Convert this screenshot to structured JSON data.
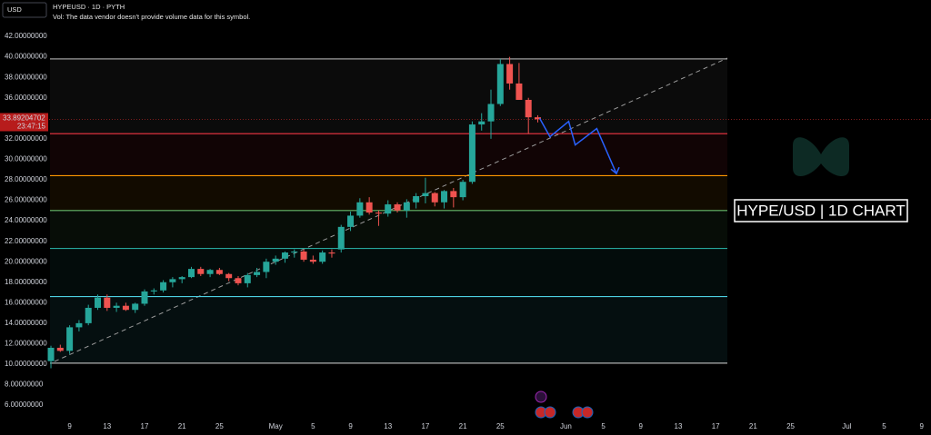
{
  "chart_data": {
    "type": "candlestick",
    "currency": "USD",
    "title": "HYPEUSD · 1D · PYTH",
    "subtitle": "Vol: The data vendor doesn't provide volume data for this symbol.",
    "annotation": "HYPE/USD | 1D CHART",
    "last_price": 33.89204702,
    "countdown": "23:47:15",
    "up_color": "#26a69a",
    "down_color": "#ef5350",
    "x": [
      0,
      1,
      2,
      3,
      4,
      5,
      6,
      7,
      8,
      9,
      10,
      11,
      12,
      13,
      14,
      15,
      16,
      17,
      18,
      19,
      20,
      21,
      22,
      23,
      24,
      25,
      26,
      27,
      28,
      29,
      30,
      31,
      32,
      33,
      34,
      35,
      36,
      37,
      38,
      39,
      40,
      41,
      42,
      43,
      44,
      45,
      46,
      47,
      48,
      49,
      50,
      51,
      52
    ],
    "open": [
      10.3,
      11.6,
      11.3,
      13.6,
      14.0,
      15.5,
      16.5,
      15.5,
      15.7,
      15.3,
      15.9,
      17.1,
      17.2,
      18.0,
      18.3,
      18.5,
      19.3,
      18.8,
      19.2,
      18.8,
      18.4,
      17.9,
      18.7,
      19.0,
      20.0,
      20.3,
      20.9,
      21.0,
      20.2,
      20.0,
      20.9,
      21.2,
      23.4,
      24.5,
      25.8,
      24.8,
      24.7,
      25.6,
      25.0,
      25.8,
      26.4,
      26.7,
      25.8,
      26.9,
      26.3,
      27.8,
      33.4,
      33.7,
      35.4,
      39.3,
      37.4,
      35.8,
      34.1
    ],
    "high": [
      11.8,
      11.9,
      13.8,
      14.3,
      15.8,
      16.8,
      16.8,
      16.0,
      16.0,
      16.0,
      17.3,
      17.4,
      18.2,
      18.5,
      18.6,
      19.5,
      19.5,
      19.3,
      19.4,
      18.9,
      18.6,
      18.9,
      19.4,
      20.3,
      20.6,
      21.0,
      21.2,
      21.2,
      20.6,
      21.1,
      21.2,
      23.6,
      24.9,
      26.2,
      26.3,
      25.0,
      26.0,
      25.8,
      26.1,
      26.7,
      28.2,
      26.8,
      27.0,
      27.2,
      28.0,
      33.7,
      34.5,
      36.8,
      39.8,
      40.0,
      39.4,
      36.0,
      34.3
    ],
    "low": [
      9.6,
      11.2,
      11.0,
      13.2,
      13.8,
      15.3,
      15.2,
      15.1,
      15.2,
      15.0,
      15.7,
      16.8,
      17.0,
      17.5,
      17.9,
      18.4,
      18.6,
      18.5,
      18.7,
      18.1,
      17.7,
      17.5,
      18.5,
      18.4,
      19.7,
      19.9,
      20.4,
      20.0,
      19.8,
      19.8,
      20.4,
      20.9,
      23.0,
      24.3,
      24.6,
      23.5,
      24.4,
      24.8,
      24.3,
      25.2,
      25.7,
      25.4,
      25.2,
      25.3,
      26.0,
      27.6,
      32.8,
      32.0,
      35.2,
      36.8,
      35.8,
      32.5,
      33.6
    ],
    "close": [
      11.6,
      11.3,
      13.6,
      14.0,
      15.5,
      16.5,
      15.5,
      15.7,
      15.3,
      15.9,
      17.1,
      17.2,
      18.0,
      18.3,
      18.5,
      19.3,
      18.8,
      19.2,
      18.8,
      18.4,
      17.9,
      18.7,
      19.0,
      20.0,
      20.3,
      20.9,
      21.0,
      20.2,
      20.0,
      20.9,
      20.8,
      23.4,
      24.5,
      25.8,
      24.8,
      24.7,
      25.6,
      25.0,
      25.8,
      26.4,
      26.7,
      25.8,
      26.9,
      26.3,
      27.8,
      33.4,
      33.7,
      35.4,
      39.3,
      37.4,
      35.8,
      34.1,
      33.9
    ],
    "levels": [
      {
        "value": 39.8,
        "color": "#9e9e9e"
      },
      {
        "value": 32.5,
        "color": "#f23645"
      },
      {
        "value": 28.4,
        "color": "#ff9800"
      },
      {
        "value": 25.0,
        "color": "#66bb6a"
      },
      {
        "value": 21.3,
        "color": "#26a69a"
      },
      {
        "value": 16.6,
        "color": "#4dd0e1"
      },
      {
        "value": 10.1,
        "color": "#b0b0b0"
      }
    ],
    "projection": {
      "color": "#2962ff",
      "x": [
        52.2,
        53.3,
        55.3,
        56.0,
        58.3,
        60.4
      ],
      "values": [
        34.0,
        32.2,
        33.7,
        31.4,
        33.0,
        28.6
      ]
    },
    "xlim": [
      -5.44,
      94.0
    ],
    "ylim": [
      4.77,
      45.55
    ],
    "xticks": [
      {
        "value": 2,
        "label": "9"
      },
      {
        "value": 6,
        "label": "13"
      },
      {
        "value": 10,
        "label": "17"
      },
      {
        "value": 14,
        "label": "21"
      },
      {
        "value": 18,
        "label": "25"
      },
      {
        "value": 24,
        "label": "May"
      },
      {
        "value": 28,
        "label": "5"
      },
      {
        "value": 32,
        "label": "9"
      },
      {
        "value": 36,
        "label": "13"
      },
      {
        "value": 40,
        "label": "17"
      },
      {
        "value": 44,
        "label": "21"
      },
      {
        "value": 48,
        "label": "25"
      },
      {
        "value": 55,
        "label": "Jun"
      },
      {
        "value": 59,
        "label": "5"
      },
      {
        "value": 63,
        "label": "9"
      },
      {
        "value": 67,
        "label": "13"
      },
      {
        "value": 71,
        "label": "17"
      },
      {
        "value": 75,
        "label": "21"
      },
      {
        "value": 79,
        "label": "25"
      },
      {
        "value": 85,
        "label": "Jul"
      },
      {
        "value": 89,
        "label": "5"
      },
      {
        "value": 93,
        "label": "9"
      }
    ],
    "yticks": [
      {
        "value": 42,
        "label": "42.00000000"
      },
      {
        "value": 40,
        "label": "40.00000000"
      },
      {
        "value": 38,
        "label": "38.00000000"
      },
      {
        "value": 36,
        "label": "36.00000000"
      },
      {
        "value": 34,
        "label": "34.00000000"
      },
      {
        "value": 32,
        "label": "32.00000000"
      },
      {
        "value": 30,
        "label": "30.00000000"
      },
      {
        "value": 28,
        "label": "28.00000000"
      },
      {
        "value": 26,
        "label": "26.00000000"
      },
      {
        "value": 24,
        "label": "24.00000000"
      },
      {
        "value": 22,
        "label": "22.00000000"
      },
      {
        "value": 20,
        "label": "20.00000000"
      },
      {
        "value": 18,
        "label": "18.00000000"
      },
      {
        "value": 16,
        "label": "16.00000000"
      },
      {
        "value": 14,
        "label": "14.00000000"
      },
      {
        "value": 12,
        "label": "12.00000000"
      },
      {
        "value": 10,
        "label": "10.00000000"
      },
      {
        "value": 8,
        "label": "8.00000000"
      },
      {
        "value": 6,
        "label": "6.00000000"
      }
    ]
  }
}
